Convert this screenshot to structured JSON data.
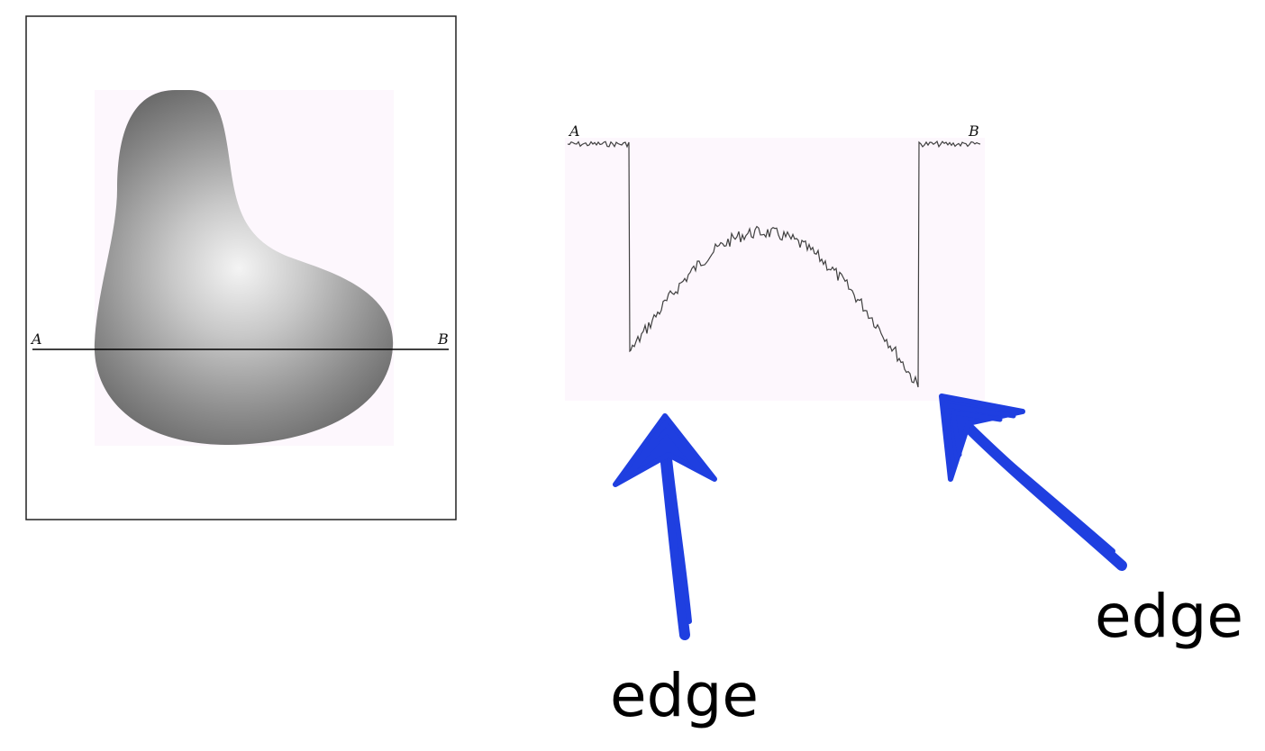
{
  "left_panel": {
    "label_start": "A",
    "label_end": "B"
  },
  "profile_plot": {
    "label_start": "A",
    "label_end": "B",
    "background_color": "#fdf7fd",
    "trace_color": "#404040"
  },
  "annotations": {
    "arrow_color": "#1f3fe0",
    "edge_left_label": "edge",
    "edge_right_label": "edge"
  }
}
